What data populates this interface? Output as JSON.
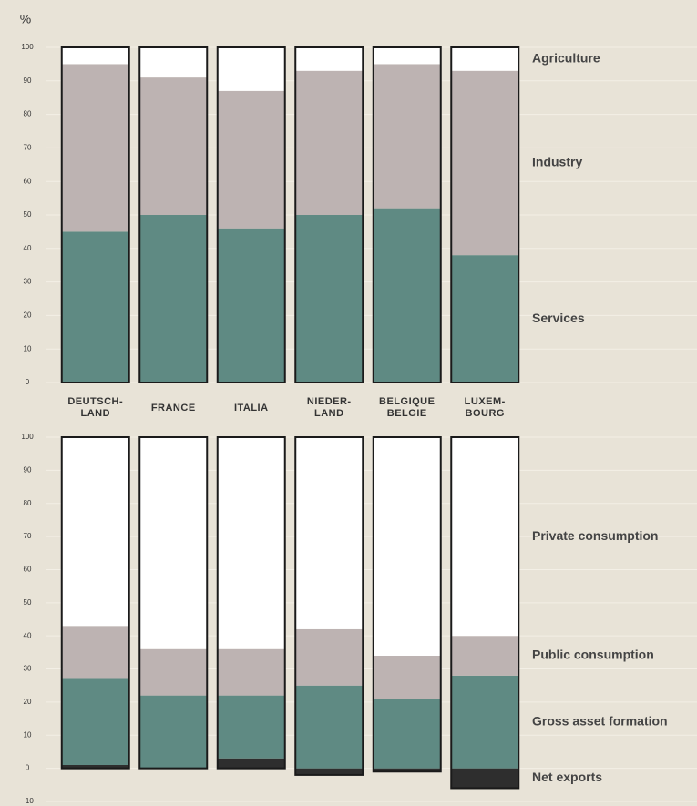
{
  "chart_data": [
    {
      "type": "bar",
      "stacked": true,
      "y_label": "%",
      "categories": [
        "DEUTSCH- LAND",
        "FRANCE",
        "ITALIA",
        "NIEDER- LAND",
        "BELGIQUE BELGIE",
        "LUXEM- BOURG"
      ],
      "series": [
        {
          "name": "Services",
          "color": "#5f8a83",
          "values": [
            45,
            50,
            46,
            50,
            52,
            38
          ]
        },
        {
          "name": "Industry",
          "color": "#bdb3b2",
          "values": [
            50,
            41,
            41,
            43,
            43,
            55
          ]
        },
        {
          "name": "Agriculture",
          "color": "#ffffff",
          "values": [
            5,
            9,
            13,
            7,
            5,
            7
          ]
        }
      ],
      "ylim": [
        0,
        100
      ],
      "yticks": [
        0,
        10,
        20,
        30,
        40,
        50,
        60,
        70,
        80,
        90,
        100
      ]
    },
    {
      "type": "bar",
      "stacked": true,
      "series": [
        {
          "name": "Net exports",
          "color": "#2e2e2e",
          "values": [
            1,
            0,
            3,
            -2,
            -1,
            -6
          ]
        },
        {
          "name": "Gross asset formation",
          "color": "#5f8a83",
          "values": [
            26,
            22,
            19,
            25,
            21,
            28
          ]
        },
        {
          "name": "Public consumption",
          "color": "#bdb3b2",
          "values": [
            16,
            14,
            14,
            17,
            13,
            12
          ]
        },
        {
          "name": "Private consumption",
          "color": "#ffffff",
          "values": [
            57,
            64,
            64,
            58,
            66,
            60
          ]
        }
      ],
      "ylim": [
        -10,
        100
      ],
      "yticks": [
        {
          "value": -10,
          "label": "−10"
        },
        0,
        10,
        20,
        30,
        40,
        50,
        60,
        70,
        80,
        90,
        100
      ]
    }
  ]
}
